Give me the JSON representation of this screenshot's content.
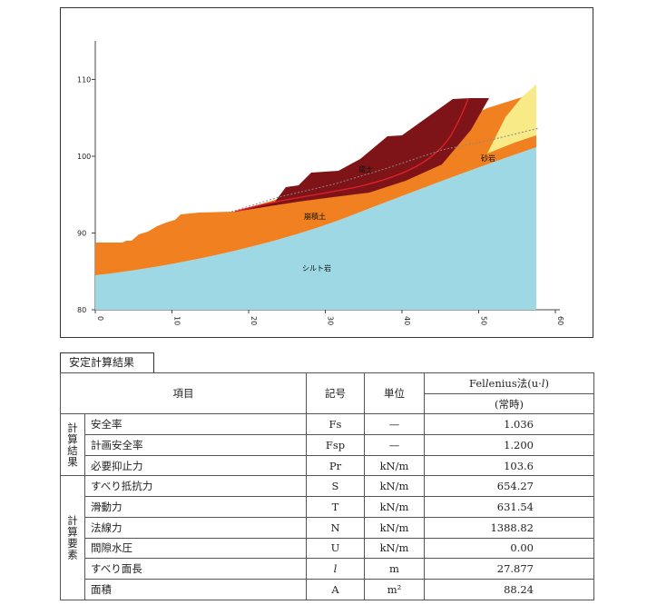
{
  "diagram": {
    "x_ticks": [
      "0",
      "10",
      "20",
      "30",
      "40",
      "50",
      "60"
    ],
    "y_ticks": [
      "80",
      "90",
      "100",
      "110"
    ],
    "layers": {
      "fill": "盛土",
      "colluvium": "崩積土",
      "sandstone": "砂岩",
      "siltstone": "シルト岩"
    },
    "colors": {
      "fill": "#7f1418",
      "colluvium": "#f08020",
      "sandstone": "#f8ea86",
      "siltstone": "#9dd8e4",
      "slip_surface": "#e0202a",
      "water_line": "#888888"
    }
  },
  "table": {
    "tab_title": "安定計算結果",
    "header": {
      "item": "項目",
      "symbol": "記号",
      "unit": "単位",
      "method_a": "Fel",
      "method_b": "l",
      "method_c": "enius法(u·",
      "method_d": "l",
      "method_e": ")",
      "condition": "(常時)"
    },
    "group1": "計算結果",
    "group2": "計算要素",
    "rows": [
      {
        "item": "安全率",
        "symbol": "Fs",
        "unit": "—",
        "value": "1.036"
      },
      {
        "item": "計画安全率",
        "symbol": "Fsp",
        "unit": "—",
        "value": "1.200"
      },
      {
        "item": "必要抑止力",
        "symbol": "Pr",
        "unit": "kN/m",
        "value": "103.6"
      },
      {
        "item": "すべり抵抗力",
        "symbol": "S",
        "unit": "kN/m",
        "value": "654.27"
      },
      {
        "item": "滑動力",
        "symbol": "T",
        "unit": "kN/m",
        "value": "631.54"
      },
      {
        "item": "法線力",
        "symbol": "N",
        "unit": "kN/m",
        "value": "1388.82"
      },
      {
        "item": "間隙水圧",
        "symbol": "U",
        "unit": "kN/m",
        "value": "0.00"
      },
      {
        "item": "すべり面長",
        "symbol": "l",
        "unit": "m",
        "value": "27.877"
      },
      {
        "item": "面積",
        "symbol": "A",
        "unit": "m²",
        "value": "88.24"
      }
    ]
  }
}
